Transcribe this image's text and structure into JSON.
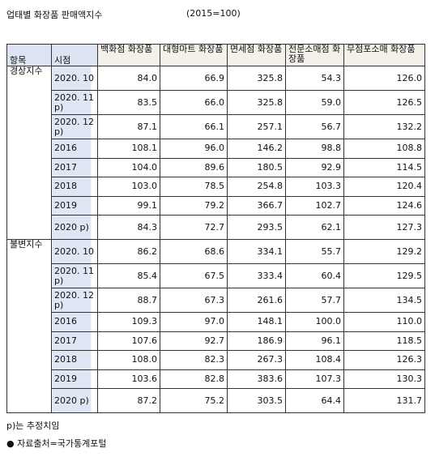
{
  "header": {
    "title": "업태별 화장품 판매액지수",
    "base": "(2015=100)"
  },
  "table": {
    "columns": [
      "항목",
      "시점",
      "백화점 화장품",
      "대형마트 화장품",
      "면세점 화장품",
      "전문소매점 화장품",
      "무점포소매 화장품"
    ],
    "groups": [
      {
        "label": "경상지수",
        "rows": [
          {
            "time": "2020. 10",
            "values": [
              "84.0",
              "66.9",
              "325.8",
              "54.3",
              "126.0"
            ]
          },
          {
            "time": "2020. 11 p)",
            "values": [
              "83.5",
              "66.0",
              "325.8",
              "59.0",
              "126.5"
            ]
          },
          {
            "time": "2020. 12 p)",
            "values": [
              "87.1",
              "66.1",
              "257.1",
              "56.7",
              "132.2"
            ]
          },
          {
            "time": "2016",
            "values": [
              "108.1",
              "96.0",
              "146.2",
              "98.8",
              "108.8"
            ]
          },
          {
            "time": "2017",
            "values": [
              "104.0",
              "89.6",
              "180.5",
              "92.9",
              "114.5"
            ]
          },
          {
            "time": "2018",
            "values": [
              "103.0",
              "78.5",
              "254.8",
              "103.3",
              "120.4"
            ]
          },
          {
            "time": "2019",
            "values": [
              "99.1",
              "79.2",
              "366.7",
              "102.7",
              "124.6"
            ]
          },
          {
            "time": "2020 p)",
            "values": [
              "84.3",
              "72.7",
              "293.5",
              "62.1",
              "127.3"
            ]
          }
        ]
      },
      {
        "label": "불변지수",
        "rows": [
          {
            "time": "2020. 10",
            "values": [
              "86.2",
              "68.6",
              "334.1",
              "55.7",
              "129.2"
            ]
          },
          {
            "time": "2020. 11 p)",
            "values": [
              "85.4",
              "67.5",
              "333.4",
              "60.4",
              "129.5"
            ]
          },
          {
            "time": "2020. 12 p)",
            "values": [
              "88.7",
              "67.3",
              "261.6",
              "57.7",
              "134.5"
            ]
          },
          {
            "time": "2016",
            "values": [
              "109.3",
              "97.0",
              "148.1",
              "100.0",
              "110.0"
            ]
          },
          {
            "time": "2017",
            "values": [
              "107.6",
              "92.7",
              "186.9",
              "96.1",
              "118.5"
            ]
          },
          {
            "time": "2018",
            "values": [
              "108.0",
              "82.3",
              "267.3",
              "108.4",
              "126.3"
            ]
          },
          {
            "time": "2019",
            "values": [
              "103.6",
              "82.8",
              "383.6",
              "107.3",
              "130.3"
            ]
          },
          {
            "time": "2020 p)",
            "values": [
              "87.2",
              "75.2",
              "303.5",
              "64.4",
              "131.7"
            ]
          }
        ]
      }
    ]
  },
  "footer": {
    "note": "p)는 추정치임",
    "source": "● 자료출처=국가통계포털"
  }
}
